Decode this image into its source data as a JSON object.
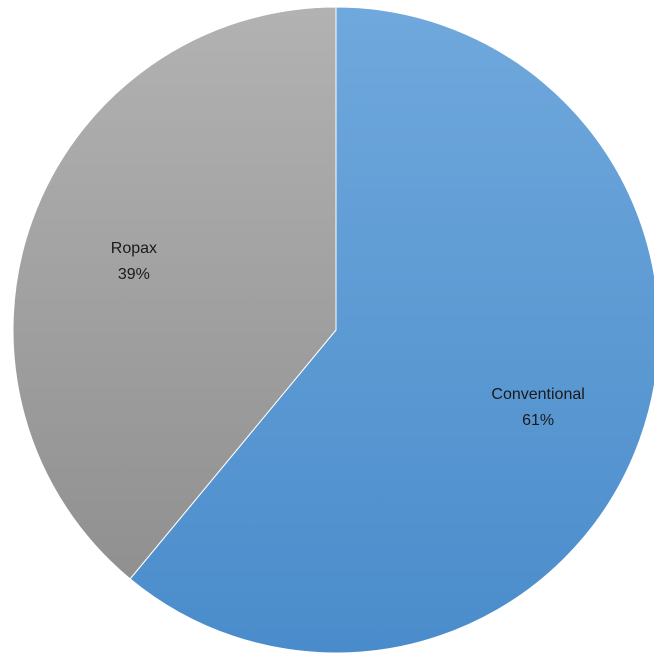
{
  "chart_data": {
    "type": "pie",
    "title": "",
    "slices": [
      {
        "label": "Conventional",
        "value": 61,
        "value_label": "61%",
        "color": "#5b9bd5"
      },
      {
        "label": "Ropax",
        "value": 39,
        "value_label": "39%",
        "color": "#a5a5a5"
      }
    ],
    "start_angle": "12 o'clock",
    "direction": "clockwise",
    "legend": "none",
    "data_labels": "inside slices: category name and percentage"
  }
}
